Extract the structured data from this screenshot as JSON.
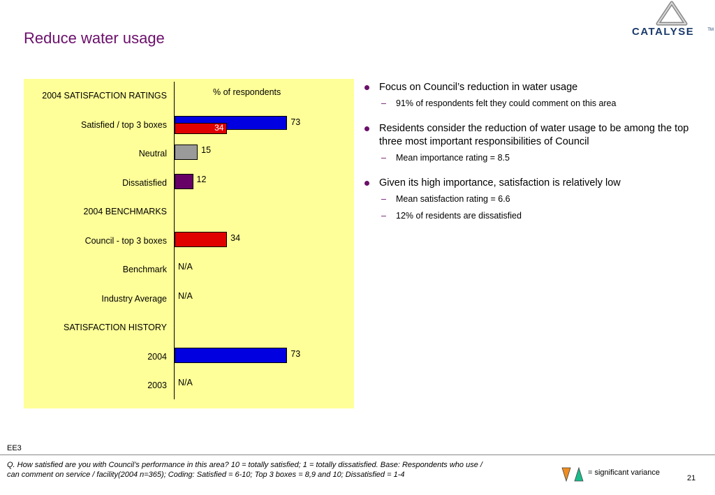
{
  "page": {
    "title": "Reduce water usage",
    "logo_text": "CATALYSE",
    "logo_tm": "TM",
    "code": "EE3",
    "footnote": "Q. How satisfied are you with Council’s performance in this area?  10 = totally satisfied; 1 = totally dissatisfied. Base: Respondents who use / can comment on service / facility(2004 n=365); Coding: Satisfied = 6-10; Top 3 boxes = 8,9 and 10; Dissatisfied = 1-4",
    "legend_text": "= significant variance",
    "page_number": "21"
  },
  "chart_data": {
    "type": "bar",
    "orientation": "horizontal",
    "xlabel": "% of respondents",
    "xlim": [
      0,
      100
    ],
    "sections": [
      {
        "heading": "2004 SATISFACTION RATINGS",
        "rows": [
          {
            "label": "Satisfied / top 3 boxes",
            "bars": [
              {
                "value": 73,
                "color": "#0000e0"
              },
              {
                "value": 34,
                "color": "#e00000",
                "label_inside": true
              }
            ]
          },
          {
            "label": "Neutral",
            "bars": [
              {
                "value": 15,
                "color": "#9a9a9a"
              }
            ]
          },
          {
            "label": "Dissatisfied",
            "bars": [
              {
                "value": 12,
                "color": "#660066"
              }
            ]
          }
        ]
      },
      {
        "heading": "2004 BENCHMARKS",
        "rows": [
          {
            "label": "Council - top 3 boxes",
            "bars": [
              {
                "value": 34,
                "color": "#e00000"
              }
            ]
          },
          {
            "label": "Benchmark",
            "bars": [],
            "na": "N/A"
          },
          {
            "label": "Industry Average",
            "bars": [],
            "na": "N/A"
          }
        ]
      },
      {
        "heading": "SATISFACTION HISTORY",
        "rows": [
          {
            "label": "2004",
            "bars": [
              {
                "value": 73,
                "color": "#0000e0"
              }
            ]
          },
          {
            "label": "2003",
            "bars": [],
            "na": "N/A"
          }
        ]
      }
    ]
  },
  "bullets": [
    {
      "text": "Focus on Council’s reduction in water usage",
      "subs": [
        "91% of respondents felt they could comment on this area"
      ]
    },
    {
      "text": "Residents consider the reduction of water usage to be among the top three most important responsibilities of Council",
      "subs": [
        "Mean importance rating = 8.5"
      ]
    },
    {
      "text": "Given its high importance, satisfaction is relatively low",
      "subs": [
        "Mean satisfaction rating = 6.6",
        "12% of residents are dissatisfied"
      ]
    }
  ],
  "icons": {
    "down_triangle": {
      "name": "down-triangle-icon",
      "color": "#f08c1e"
    },
    "up_triangle": {
      "name": "up-triangle-icon",
      "color": "#1abc8c"
    }
  }
}
